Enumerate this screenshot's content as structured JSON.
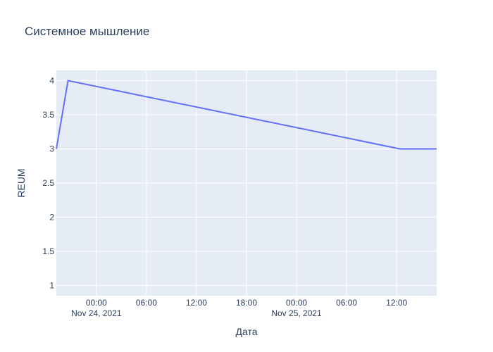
{
  "chart_data": {
    "type": "line",
    "title": "Системное мышление",
    "xlabel": "Дата",
    "ylabel": "REUM",
    "ylim": [
      0.85,
      4.15
    ],
    "y_ticks": [
      1,
      1.5,
      2,
      2.5,
      3,
      3.5,
      4
    ],
    "y_tick_labels": [
      "1",
      "1.5",
      "2",
      "2.5",
      "3",
      "3.5",
      "4"
    ],
    "x_range_hours": [
      -4.8,
      40.8
    ],
    "x_ticks": [
      {
        "hour": 0,
        "label": "00:00",
        "date": "Nov 24, 2021"
      },
      {
        "hour": 6,
        "label": "06:00",
        "date": ""
      },
      {
        "hour": 12,
        "label": "12:00",
        "date": ""
      },
      {
        "hour": 18,
        "label": "18:00",
        "date": ""
      },
      {
        "hour": 24,
        "label": "00:00",
        "date": "Nov 25, 2021"
      },
      {
        "hour": 30,
        "label": "06:00",
        "date": ""
      },
      {
        "hour": 36,
        "label": "12:00",
        "date": ""
      }
    ],
    "series": [
      {
        "name": "REUM",
        "color": "#636efa",
        "points": [
          {
            "hour": -4.8,
            "value": 3
          },
          {
            "hour": -3.4,
            "value": 4
          },
          {
            "hour": 36.4,
            "value": 3
          },
          {
            "hour": 40.8,
            "value": 3
          }
        ]
      }
    ],
    "plot_bg": "#e5ecf6",
    "grid": true
  }
}
